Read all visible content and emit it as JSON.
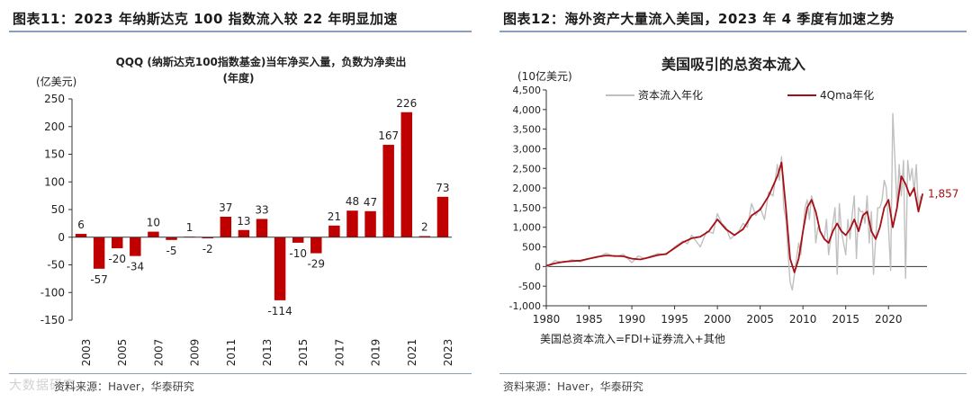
{
  "figures": [
    {
      "fig_label": "图表11：",
      "fig_title": "2023 年纳斯达克 100 指数流入较 22 年明显加速",
      "source": "资料来源：Haver，华泰研究"
    },
    {
      "fig_label": "图表12：",
      "fig_title": "海外资产大量流入美国，2023 年 4 季度有加速之势",
      "source": "资料来源：Haver，华泰研究"
    }
  ],
  "watermark": "大数据研究",
  "chart_data": [
    {
      "type": "bar",
      "title": "QQQ (纳斯达克100指数基金)当年净买入量，负数为净卖出",
      "subtitle": "(年度)",
      "ylabel": "(亿美元)",
      "ylim": [
        -150,
        250
      ],
      "yticks": [
        -150,
        -100,
        -50,
        0,
        50,
        100,
        150,
        200,
        250
      ],
      "bar_color": "#c00000",
      "categories": [
        "2003",
        "2004",
        "2005",
        "2006",
        "2007",
        "2008",
        "2009",
        "2010",
        "2011",
        "2012",
        "2013",
        "2014",
        "2015",
        "2016",
        "2017",
        "2018",
        "2019",
        "2020",
        "2021",
        "2022",
        "2023"
      ],
      "values": [
        6,
        -57,
        -20,
        -34,
        10,
        -5,
        1,
        -2,
        37,
        13,
        33,
        -114,
        -10,
        -29,
        21,
        48,
        47,
        167,
        226,
        2,
        73
      ],
      "tick_labels": [
        "2003",
        "2005",
        "2007",
        "2009",
        "2011",
        "2013",
        "2015",
        "2017",
        "2019",
        "2021",
        "2023"
      ]
    },
    {
      "type": "line",
      "title": "美国吸引的总资本流入",
      "ylabel": "(10亿美元)",
      "ylim": [
        -1000,
        4500
      ],
      "yticks": [
        -1000,
        -500,
        0,
        500,
        1000,
        1500,
        2000,
        2500,
        3000,
        3500,
        4000,
        4500
      ],
      "ytick_labels": [
        "-1,000",
        "-500",
        "0",
        "500",
        "1,000",
        "1,500",
        "2,000",
        "2,500",
        "3,000",
        "3,500",
        "4,000",
        "4,500"
      ],
      "xlim": [
        1980,
        2024.5
      ],
      "xticks": [
        1980,
        1985,
        1990,
        1995,
        2000,
        2005,
        2010,
        2015,
        2020
      ],
      "note": "美国总资本流入=FDI+证券流入+其他",
      "end_label": "1,857",
      "legend_position": "top",
      "series": [
        {
          "name": "资本流入年化",
          "color": "#c0c0c0",
          "x": [
            1980,
            1981,
            1982,
            1983,
            1984,
            1985,
            1986,
            1987,
            1988,
            1989,
            1990,
            1990.75,
            1991.5,
            1992,
            1993,
            1994,
            1995,
            1996,
            1996.5,
            1997,
            1997.5,
            1998,
            1998.75,
            1999.5,
            2000,
            2000.5,
            2001,
            2001.5,
            2002,
            2002.5,
            2003,
            2003.5,
            2004,
            2004.5,
            2005,
            2005.5,
            2006,
            2006.5,
            2007,
            2007.25,
            2007.5,
            2007.75,
            2008,
            2008.25,
            2008.5,
            2008.75,
            2009,
            2009.25,
            2009.5,
            2009.75,
            2010,
            2010.25,
            2010.5,
            2010.75,
            2011,
            2011.25,
            2011.5,
            2011.75,
            2012,
            2012.5,
            2012.75,
            2013,
            2013.5,
            2013.75,
            2014,
            2014.25,
            2014.5,
            2015,
            2015.25,
            2015.5,
            2015.75,
            2016,
            2016.25,
            2016.5,
            2016.75,
            2017,
            2017.25,
            2017.5,
            2017.75,
            2018,
            2018.25,
            2018.5,
            2018.75,
            2019,
            2019.25,
            2019.5,
            2019.75,
            2020,
            2020.25,
            2020.5,
            2020.75,
            2021,
            2021.25,
            2021.5,
            2021.75,
            2022,
            2022.25,
            2022.5,
            2022.75,
            2023,
            2023.25,
            2023.5,
            2023.75
          ],
          "values": [
            -30,
            150,
            100,
            170,
            120,
            200,
            230,
            340,
            250,
            310,
            100,
            270,
            200,
            250,
            330,
            300,
            500,
            650,
            580,
            800,
            650,
            500,
            900,
            850,
            1350,
            1100,
            1000,
            700,
            800,
            900,
            1100,
            1000,
            1600,
            1300,
            1500,
            1200,
            1900,
            1800,
            2600,
            2200,
            2800,
            1500,
            1200,
            400,
            -400,
            -600,
            -200,
            200,
            600,
            300,
            900,
            1500,
            1700,
            1200,
            1800,
            1600,
            600,
            1000,
            900,
            700,
            1200,
            300,
            1100,
            1500,
            -200,
            1600,
            900,
            300,
            1200,
            700,
            1300,
            1800,
            200,
            1500,
            1400,
            1400,
            1100,
            1800,
            600,
            1400,
            -200,
            700,
            1500,
            1500,
            1700,
            2200,
            2000,
            1000,
            -100,
            3900,
            2700,
            1500,
            2600,
            1800,
            2700,
            -300,
            2700,
            2200,
            2500,
            1900,
            2600,
            1400,
            1800
          ]
        },
        {
          "name": "4Qma年化",
          "color": "#a50f15",
          "x": [
            1980,
            1981,
            1982,
            1983,
            1984,
            1985,
            1986,
            1987,
            1988,
            1989,
            1990,
            1991,
            1992,
            1993,
            1994,
            1995,
            1996,
            1997,
            1998,
            1999,
            2000,
            2001,
            2002,
            2003,
            2004,
            2005,
            2006,
            2007,
            2007.5,
            2008,
            2008.5,
            2009,
            2009.5,
            2010,
            2010.5,
            2011,
            2011.5,
            2012,
            2012.5,
            2013,
            2013.5,
            2014,
            2014.5,
            2015,
            2015.5,
            2016,
            2016.5,
            2017,
            2017.5,
            2018,
            2018.5,
            2019,
            2019.5,
            2020,
            2020.5,
            2021,
            2021.5,
            2022,
            2022.5,
            2023,
            2023.5,
            2024
          ],
          "values": [
            20,
            80,
            120,
            140,
            150,
            200,
            250,
            280,
            270,
            260,
            200,
            180,
            230,
            290,
            320,
            470,
            620,
            720,
            760,
            900,
            1200,
            950,
            800,
            950,
            1300,
            1450,
            1800,
            2300,
            2650,
            1500,
            200,
            -150,
            200,
            900,
            1500,
            1700,
            1400,
            900,
            700,
            600,
            900,
            1100,
            900,
            800,
            950,
            1200,
            900,
            1300,
            1400,
            900,
            700,
            1000,
            1500,
            1700,
            1000,
            1500,
            2300,
            2100,
            1800,
            2000,
            1400,
            1857
          ]
        }
      ]
    }
  ]
}
